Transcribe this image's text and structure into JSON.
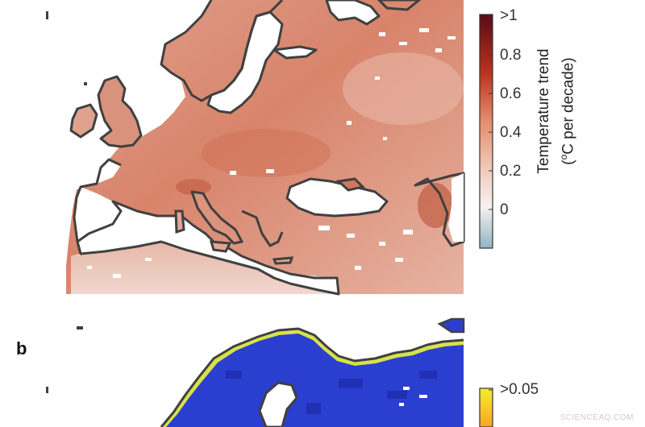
{
  "panel_a": {
    "colorbar": {
      "title_line1": "Temperature trend",
      "title_line2_prefix": "(",
      "title_sup": "o",
      "title_line2_suffix": "C per decade)",
      "ticks": [
        ">1",
        "0.8",
        "0.6",
        "0.4",
        "0.2",
        "0"
      ],
      "colors": {
        "top": "#5a0a17",
        "upper": "#b8341c",
        "mid": "#e38b6a",
        "low": "#f6e4de",
        "bottom": "#8fb6c3"
      }
    },
    "map_colors": {
      "land_trend": "#d98a72",
      "land_light": "#e7b7a6",
      "land_hot": "#c8664e",
      "coastline": "#404040",
      "no_data": "#ffffff"
    }
  },
  "panel_b": {
    "letter": "b",
    "colorbar": {
      "ticks": [
        ">0.05"
      ],
      "colors": {
        "top": "#f2ea2c"
      }
    },
    "map_colors": {
      "land": "#2a3fcf",
      "land_dark": "#1d2aa8",
      "coast_edge": "#d6e24a",
      "coastline": "#404040"
    }
  },
  "watermark": "SCIENCEAQ.COM"
}
